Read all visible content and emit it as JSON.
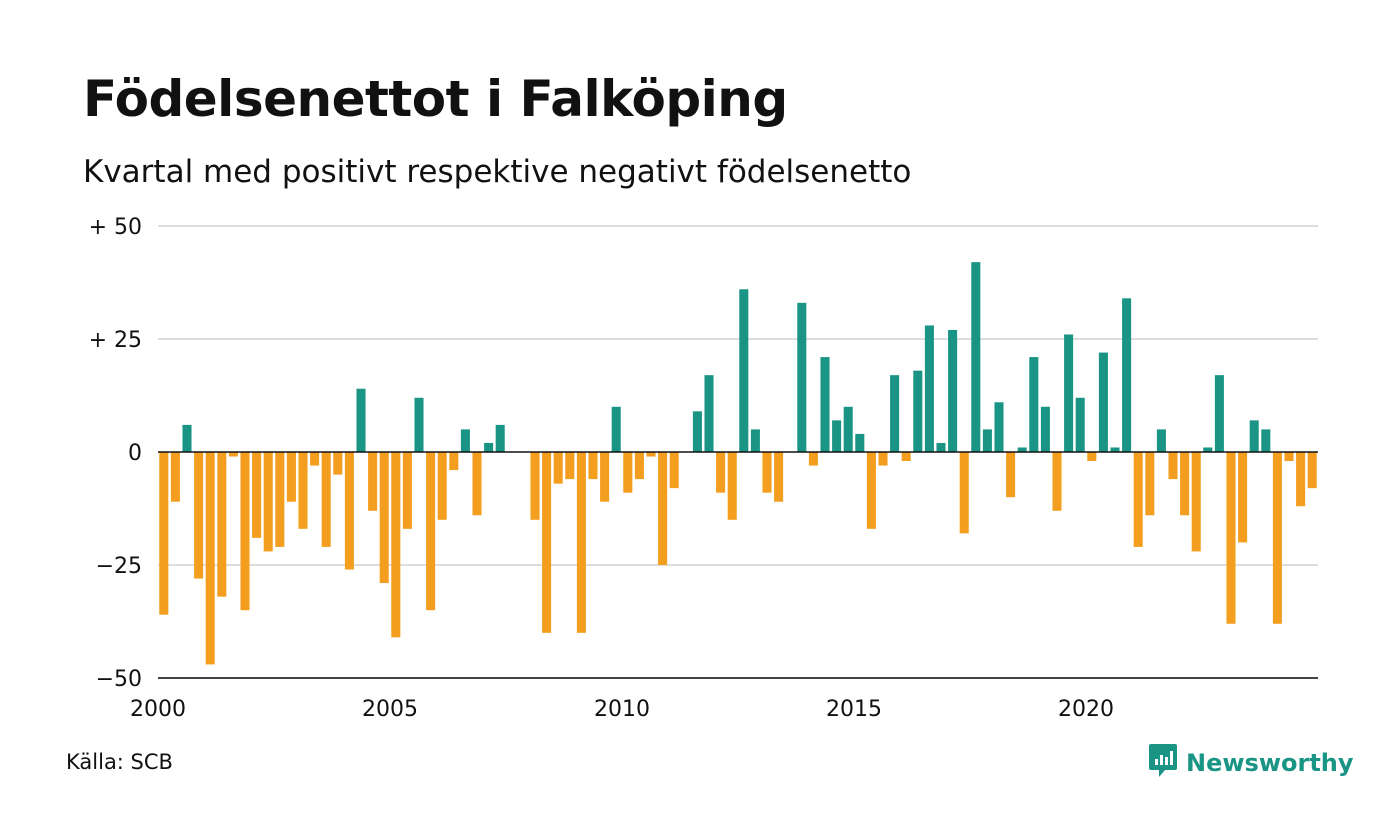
{
  "header": {
    "title": "Födelsenettot i Falköping",
    "subtitle": "Kvartal med positivt respektive negativt födelsenetto"
  },
  "footer": {
    "source": "Källa: SCB",
    "brand": "Newsworthy"
  },
  "colors": {
    "positive": "#1a9585",
    "negative": "#f49e1f",
    "grid": "#dddddd",
    "zero_line": "#111111",
    "brand": "#1a9585"
  },
  "icons": {
    "brand_logo": "chat-bubble-bar-chart-icon"
  },
  "chart_data": {
    "type": "bar",
    "title": "Födelsenettot i Falköping",
    "subtitle": "Kvartal med positivt respektive negativt födelsenetto",
    "xlabel": "",
    "ylabel": "",
    "ylim": [
      -50,
      50
    ],
    "xlim": [
      2000,
      2025
    ],
    "grid": true,
    "legend": "none",
    "y_ticks": [
      {
        "value": 50,
        "label": "+ 50"
      },
      {
        "value": 25,
        "label": "+ 25"
      },
      {
        "value": 0,
        "label": "0"
      },
      {
        "value": -25,
        "label": "−25"
      },
      {
        "value": -50,
        "label": "−50"
      }
    ],
    "x_ticks": [
      {
        "value": 2000,
        "label": "2000"
      },
      {
        "value": 2005,
        "label": "2005"
      },
      {
        "value": 2010,
        "label": "2010"
      },
      {
        "value": 2015,
        "label": "2015"
      },
      {
        "value": 2020,
        "label": "2020"
      }
    ],
    "categories": [
      "2000K1",
      "2000K2",
      "2000K3",
      "2000K4",
      "2001K1",
      "2001K2",
      "2001K3",
      "2001K4",
      "2002K1",
      "2002K2",
      "2002K3",
      "2002K4",
      "2003K1",
      "2003K2",
      "2003K3",
      "2003K4",
      "2004K1",
      "2004K2",
      "2004K3",
      "2004K4",
      "2005K1",
      "2005K2",
      "2005K3",
      "2005K4",
      "2006K1",
      "2006K2",
      "2006K3",
      "2006K4",
      "2007K1",
      "2007K2",
      "2007K3",
      "2007K4",
      "2008K1",
      "2008K2",
      "2008K3",
      "2008K4",
      "2009K1",
      "2009K2",
      "2009K3",
      "2009K4",
      "2010K1",
      "2010K2",
      "2010K3",
      "2010K4",
      "2011K1",
      "2011K2",
      "2011K3",
      "2011K4",
      "2012K1",
      "2012K2",
      "2012K3",
      "2012K4",
      "2013K1",
      "2013K2",
      "2013K3",
      "2013K4",
      "2014K1",
      "2014K2",
      "2014K3",
      "2014K4",
      "2015K1",
      "2015K2",
      "2015K3",
      "2015K4",
      "2016K1",
      "2016K2",
      "2016K3",
      "2016K4",
      "2017K1",
      "2017K2",
      "2017K3",
      "2017K4",
      "2018K1",
      "2018K2",
      "2018K3",
      "2018K4",
      "2019K1",
      "2019K2",
      "2019K3",
      "2019K4",
      "2020K1",
      "2020K2",
      "2020K3",
      "2020K4",
      "2021K1",
      "2021K2",
      "2021K3",
      "2021K4",
      "2022K1",
      "2022K2",
      "2022K3",
      "2022K4",
      "2023K1",
      "2023K2",
      "2023K3",
      "2023K4",
      "2024K1",
      "2024K2",
      "2024K3",
      "2024K4"
    ],
    "values": [
      -36,
      -11,
      6,
      -28,
      -47,
      -32,
      -1,
      -35,
      -19,
      -22,
      -21,
      -11,
      -17,
      -3,
      -21,
      -5,
      -26,
      14,
      -13,
      -29,
      -41,
      -17,
      12,
      -35,
      -15,
      -4,
      5,
      -14,
      2,
      6,
      0,
      0,
      -15,
      -40,
      -7,
      -6,
      -40,
      -6,
      -11,
      10,
      -9,
      -6,
      -1,
      -25,
      -8,
      0,
      9,
      17,
      -9,
      -15,
      36,
      5,
      -9,
      -11,
      0,
      33,
      -3,
      21,
      7,
      10,
      4,
      -17,
      -3,
      17,
      -2,
      18,
      28,
      2,
      27,
      -18,
      42,
      5,
      11,
      -10,
      1,
      21,
      10,
      -13,
      26,
      12,
      -2,
      22,
      1,
      34,
      -21,
      -14,
      5,
      -6,
      -14,
      -22,
      1,
      17,
      -38,
      -20,
      7,
      5,
      -38,
      -2,
      -12,
      -8
    ]
  }
}
